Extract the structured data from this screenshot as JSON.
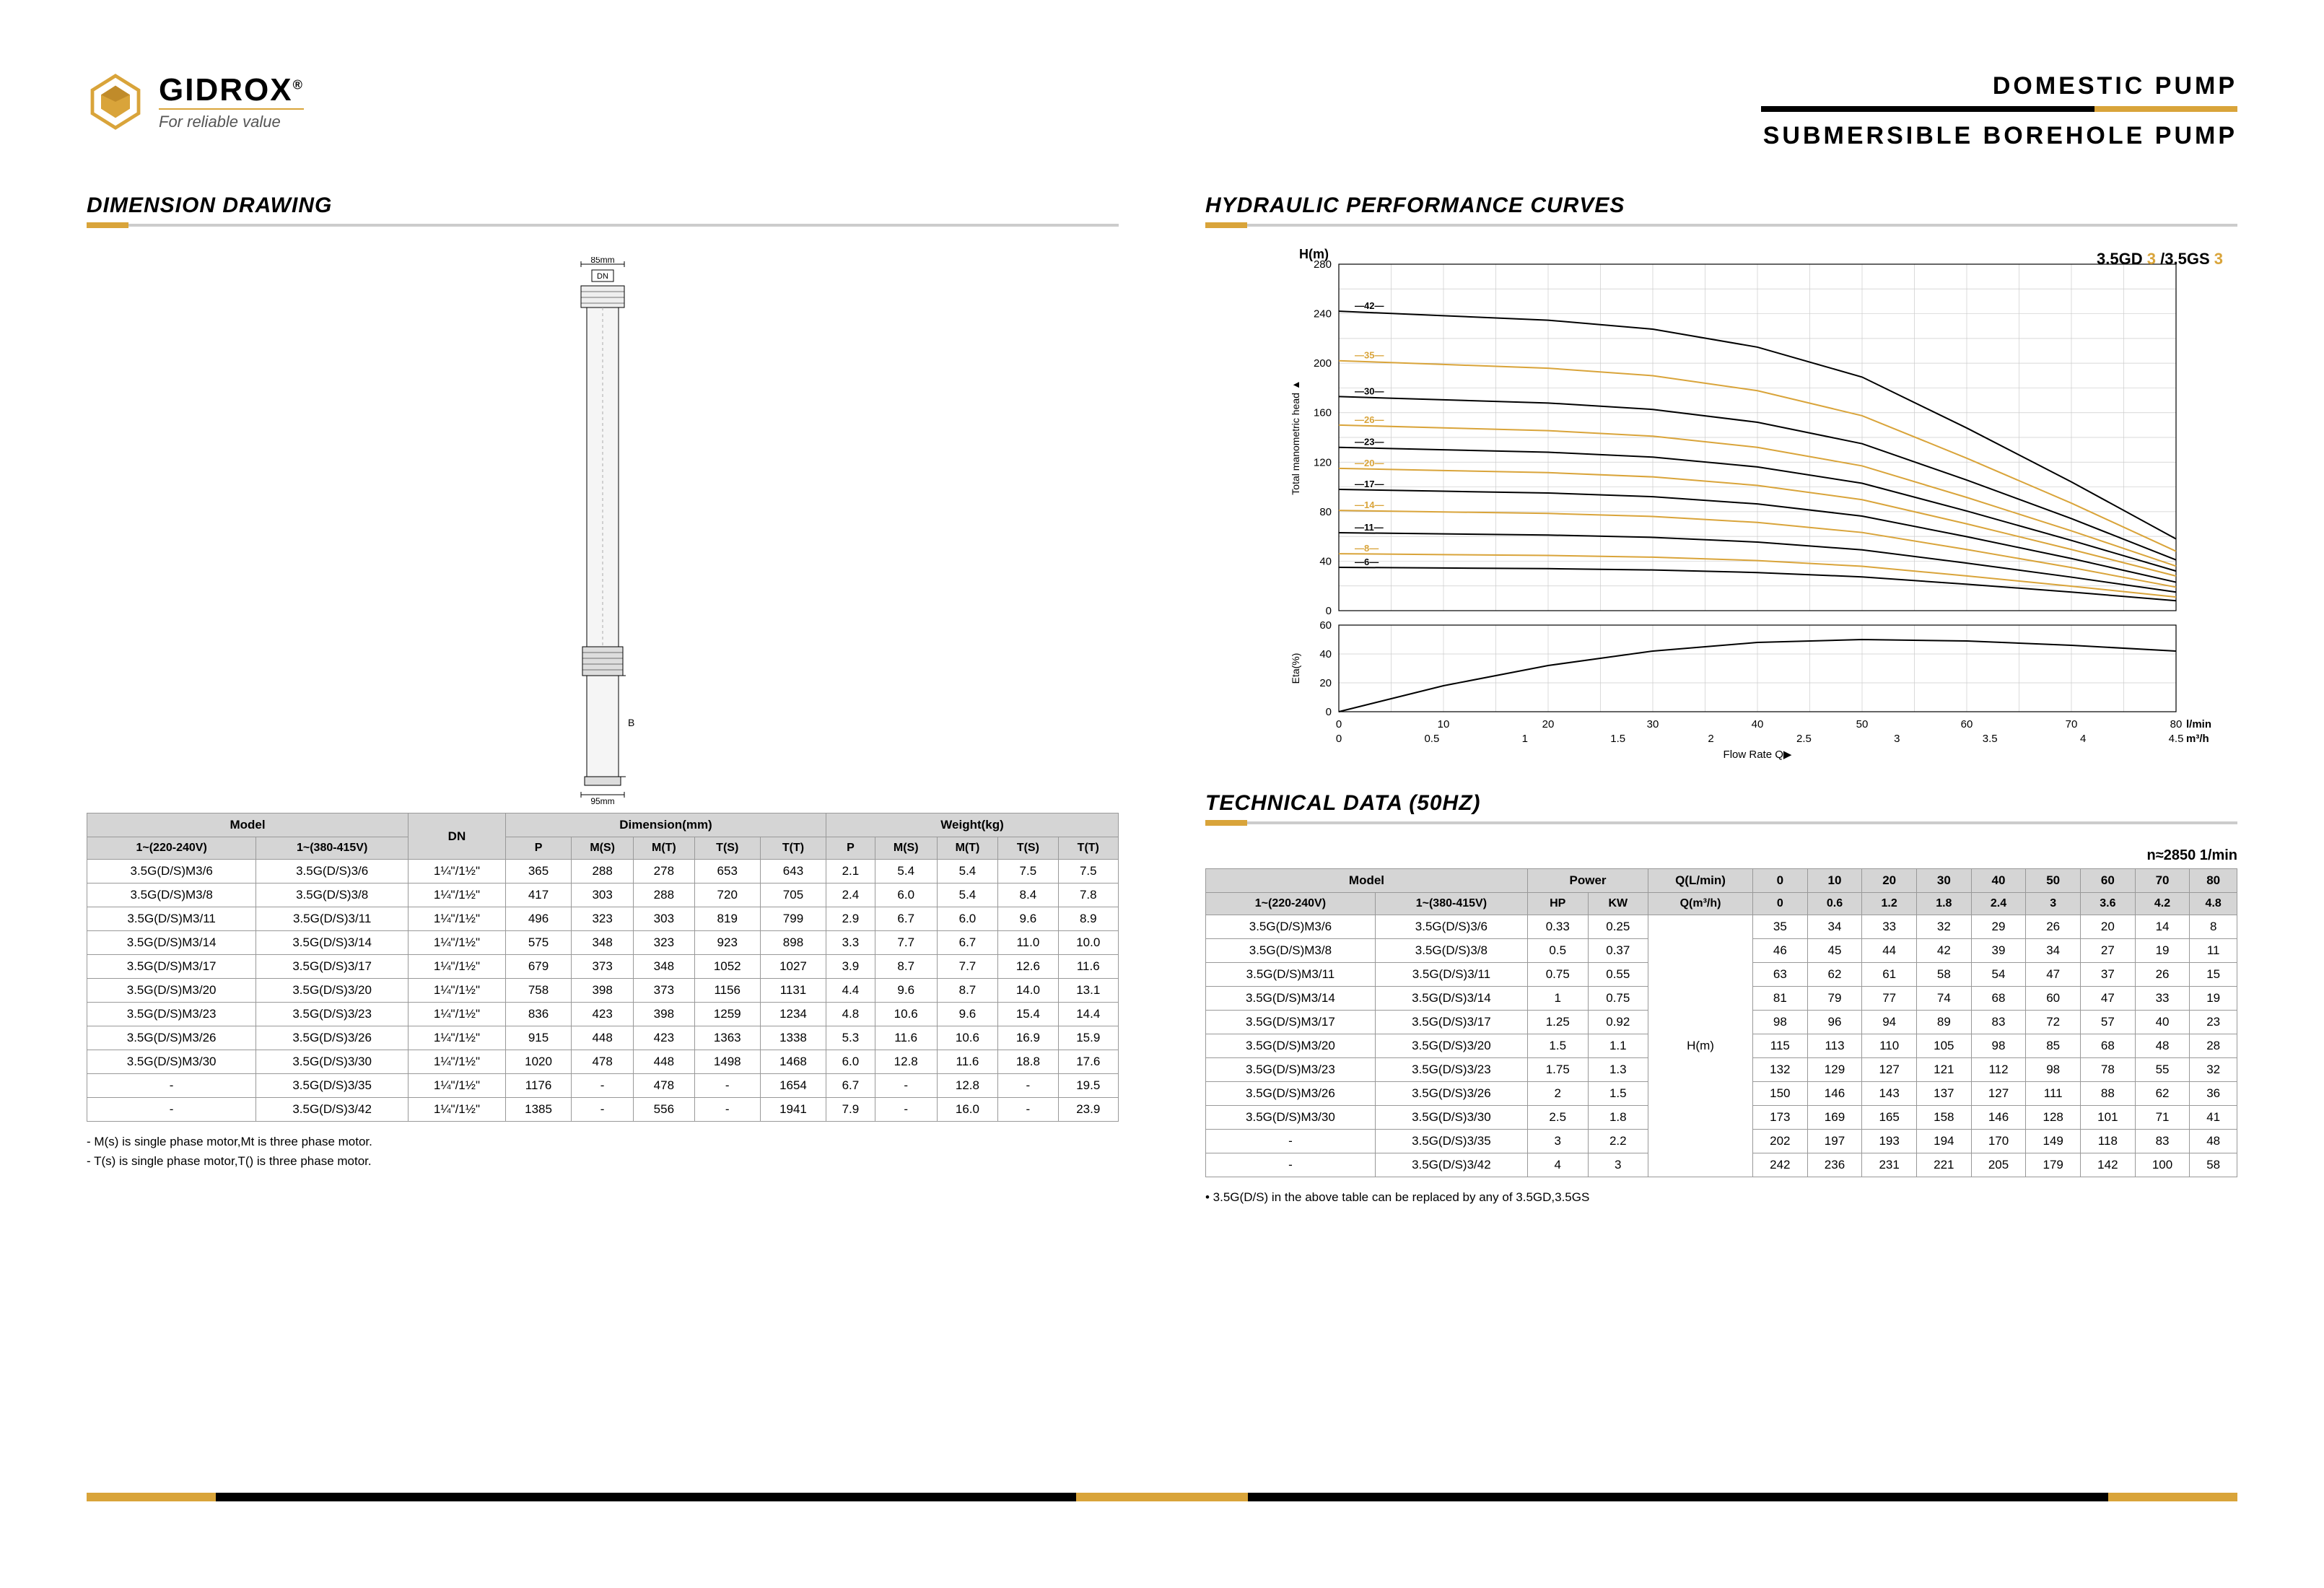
{
  "logo": {
    "name": "GIDROX",
    "reg": "®",
    "tagline": "For reliable value"
  },
  "titles": {
    "line1": "DOMESTIC  PUMP",
    "line2": "SUBMERSIBLE  BOREHOLE  PUMP"
  },
  "headings": {
    "dim": "DIMENSION DRAWING",
    "curves": "HYDRAULIC PERFORMANCE CURVES",
    "tech": "TECHNICAL DATA (50HZ)"
  },
  "drawing": {
    "width_label": "85mm",
    "dn_label": "DN",
    "body_label": "B",
    "bottom_label": "95mm"
  },
  "chart": {
    "title_a": "3.5GD",
    "title_b": "3",
    "title_c": "/3.5GS",
    "title_d": "3",
    "y_axis_label": "Total manometric head",
    "eff_label": "Eta(%)",
    "x_label": "Flow Rate  Q▶",
    "x_unit_top": "l/min",
    "x_unit_bot": "m³/h",
    "hm": "H(m)",
    "y_ticks": [
      0,
      40,
      80,
      120,
      160,
      200,
      240,
      280
    ],
    "eff_ticks": [
      0,
      20,
      40,
      60
    ],
    "x_top": [
      0,
      10,
      20,
      30,
      40,
      50,
      60,
      70,
      80
    ],
    "x_bot": [
      0,
      0.5,
      1.0,
      1.5,
      2.0,
      2.5,
      3.0,
      3.5,
      4.0,
      4.5
    ],
    "curves": [
      {
        "label": "42",
        "color": "#000",
        "y0": 242,
        "y80": 58
      },
      {
        "label": "35",
        "color": "#d9a43a",
        "y0": 202,
        "y80": 48
      },
      {
        "label": "30",
        "color": "#000",
        "y0": 173,
        "y80": 41
      },
      {
        "label": "26",
        "color": "#d9a43a",
        "y0": 150,
        "y80": 36
      },
      {
        "label": "23",
        "color": "#000",
        "y0": 132,
        "y80": 32
      },
      {
        "label": "20",
        "color": "#d9a43a",
        "y0": 115,
        "y80": 28
      },
      {
        "label": "17",
        "color": "#000",
        "y0": 98,
        "y80": 23
      },
      {
        "label": "14",
        "color": "#d9a43a",
        "y0": 81,
        "y80": 19
      },
      {
        "label": "11",
        "color": "#000",
        "y0": 63,
        "y80": 15
      },
      {
        "label": "8",
        "color": "#d9a43a",
        "y0": 46,
        "y80": 11
      },
      {
        "label": "6",
        "color": "#000",
        "y0": 35,
        "y80": 8
      }
    ],
    "efficiency": {
      "color": "#000",
      "peak": 50,
      "end": 42
    }
  },
  "dim_table": {
    "headers": {
      "model": "Model",
      "dn": "DN",
      "dimension": "Dimension(mm)",
      "weight": "Weight(kg)",
      "v1": "1~(220-240V)",
      "v2": "1~(380-415V)",
      "p": "P",
      "ms": "M(S)",
      "mt": "M(T)",
      "ts": "T(S)",
      "tt": "T(T)"
    },
    "rows": [
      [
        "3.5G(D/S)M3/6",
        "3.5G(D/S)3/6",
        "1¼\"/1½\"",
        "365",
        "288",
        "278",
        "653",
        "643",
        "2.1",
        "5.4",
        "5.4",
        "7.5",
        "7.5"
      ],
      [
        "3.5G(D/S)M3/8",
        "3.5G(D/S)3/8",
        "1¼\"/1½\"",
        "417",
        "303",
        "288",
        "720",
        "705",
        "2.4",
        "6.0",
        "5.4",
        "8.4",
        "7.8"
      ],
      [
        "3.5G(D/S)M3/11",
        "3.5G(D/S)3/11",
        "1¼\"/1½\"",
        "496",
        "323",
        "303",
        "819",
        "799",
        "2.9",
        "6.7",
        "6.0",
        "9.6",
        "8.9"
      ],
      [
        "3.5G(D/S)M3/14",
        "3.5G(D/S)3/14",
        "1¼\"/1½\"",
        "575",
        "348",
        "323",
        "923",
        "898",
        "3.3",
        "7.7",
        "6.7",
        "11.0",
        "10.0"
      ],
      [
        "3.5G(D/S)M3/17",
        "3.5G(D/S)3/17",
        "1¼\"/1½\"",
        "679",
        "373",
        "348",
        "1052",
        "1027",
        "3.9",
        "8.7",
        "7.7",
        "12.6",
        "11.6"
      ],
      [
        "3.5G(D/S)M3/20",
        "3.5G(D/S)3/20",
        "1¼\"/1½\"",
        "758",
        "398",
        "373",
        "1156",
        "1131",
        "4.4",
        "9.6",
        "8.7",
        "14.0",
        "13.1"
      ],
      [
        "3.5G(D/S)M3/23",
        "3.5G(D/S)3/23",
        "1¼\"/1½\"",
        "836",
        "423",
        "398",
        "1259",
        "1234",
        "4.8",
        "10.6",
        "9.6",
        "15.4",
        "14.4"
      ],
      [
        "3.5G(D/S)M3/26",
        "3.5G(D/S)3/26",
        "1¼\"/1½\"",
        "915",
        "448",
        "423",
        "1363",
        "1338",
        "5.3",
        "11.6",
        "10.6",
        "16.9",
        "15.9"
      ],
      [
        "3.5G(D/S)M3/30",
        "3.5G(D/S)3/30",
        "1¼\"/1½\"",
        "1020",
        "478",
        "448",
        "1498",
        "1468",
        "6.0",
        "12.8",
        "11.6",
        "18.8",
        "17.6"
      ],
      [
        "-",
        "3.5G(D/S)3/35",
        "1¼\"/1½\"",
        "1176",
        "-",
        "478",
        "-",
        "1654",
        "6.7",
        "-",
        "12.8",
        "-",
        "19.5"
      ],
      [
        "-",
        "3.5G(D/S)3/42",
        "1¼\"/1½\"",
        "1385",
        "-",
        "556",
        "-",
        "1941",
        "7.9",
        "-",
        "16.0",
        "-",
        "23.9"
      ]
    ],
    "note1": "- M(s) is single phase motor,Mt is three phase motor.",
    "note2": "- T(s) is single phase motor,T() is three phase motor."
  },
  "tech_table": {
    "rpm": "n≈2850 1/min",
    "headers": {
      "model": "Model",
      "power": "Power",
      "ql": "Q(L/min)",
      "qm": "Q(m³/h)",
      "v1": "1~(220-240V)",
      "v2": "1~(380-415V)",
      "hp": "HP",
      "kw": "KW",
      "q_top": [
        "0",
        "10",
        "20",
        "30",
        "40",
        "50",
        "60",
        "70",
        "80"
      ],
      "q_bot": [
        "0",
        "0.6",
        "1.2",
        "1.8",
        "2.4",
        "3",
        "3.6",
        "4.2",
        "4.8"
      ],
      "hm": "H(m)"
    },
    "rows": [
      [
        "3.5G(D/S)M3/6",
        "3.5G(D/S)3/6",
        "0.33",
        "0.25",
        "35",
        "34",
        "33",
        "32",
        "29",
        "26",
        "20",
        "14",
        "8"
      ],
      [
        "3.5G(D/S)M3/8",
        "3.5G(D/S)3/8",
        "0.5",
        "0.37",
        "46",
        "45",
        "44",
        "42",
        "39",
        "34",
        "27",
        "19",
        "11"
      ],
      [
        "3.5G(D/S)M3/11",
        "3.5G(D/S)3/11",
        "0.75",
        "0.55",
        "63",
        "62",
        "61",
        "58",
        "54",
        "47",
        "37",
        "26",
        "15"
      ],
      [
        "3.5G(D/S)M3/14",
        "3.5G(D/S)3/14",
        "1",
        "0.75",
        "81",
        "79",
        "77",
        "74",
        "68",
        "60",
        "47",
        "33",
        "19"
      ],
      [
        "3.5G(D/S)M3/17",
        "3.5G(D/S)3/17",
        "1.25",
        "0.92",
        "98",
        "96",
        "94",
        "89",
        "83",
        "72",
        "57",
        "40",
        "23"
      ],
      [
        "3.5G(D/S)M3/20",
        "3.5G(D/S)3/20",
        "1.5",
        "1.1",
        "115",
        "113",
        "110",
        "105",
        "98",
        "85",
        "68",
        "48",
        "28"
      ],
      [
        "3.5G(D/S)M3/23",
        "3.5G(D/S)3/23",
        "1.75",
        "1.3",
        "132",
        "129",
        "127",
        "121",
        "112",
        "98",
        "78",
        "55",
        "32"
      ],
      [
        "3.5G(D/S)M3/26",
        "3.5G(D/S)3/26",
        "2",
        "1.5",
        "150",
        "146",
        "143",
        "137",
        "127",
        "111",
        "88",
        "62",
        "36"
      ],
      [
        "3.5G(D/S)M3/30",
        "3.5G(D/S)3/30",
        "2.5",
        "1.8",
        "173",
        "169",
        "165",
        "158",
        "146",
        "128",
        "101",
        "71",
        "41"
      ],
      [
        "-",
        "3.5G(D/S)3/35",
        "3",
        "2.2",
        "202",
        "197",
        "193",
        "194",
        "170",
        "149",
        "118",
        "83",
        "48"
      ],
      [
        "-",
        "3.5G(D/S)3/42",
        "4",
        "3",
        "242",
        "236",
        "231",
        "221",
        "205",
        "179",
        "142",
        "100",
        "58"
      ]
    ],
    "note": "•  3.5G(D/S) in the above table can be replaced by any of 3.5GD,3.5GS"
  },
  "colors": {
    "accent": "#d9a43a",
    "black": "#000000",
    "grid": "#cccccc"
  }
}
